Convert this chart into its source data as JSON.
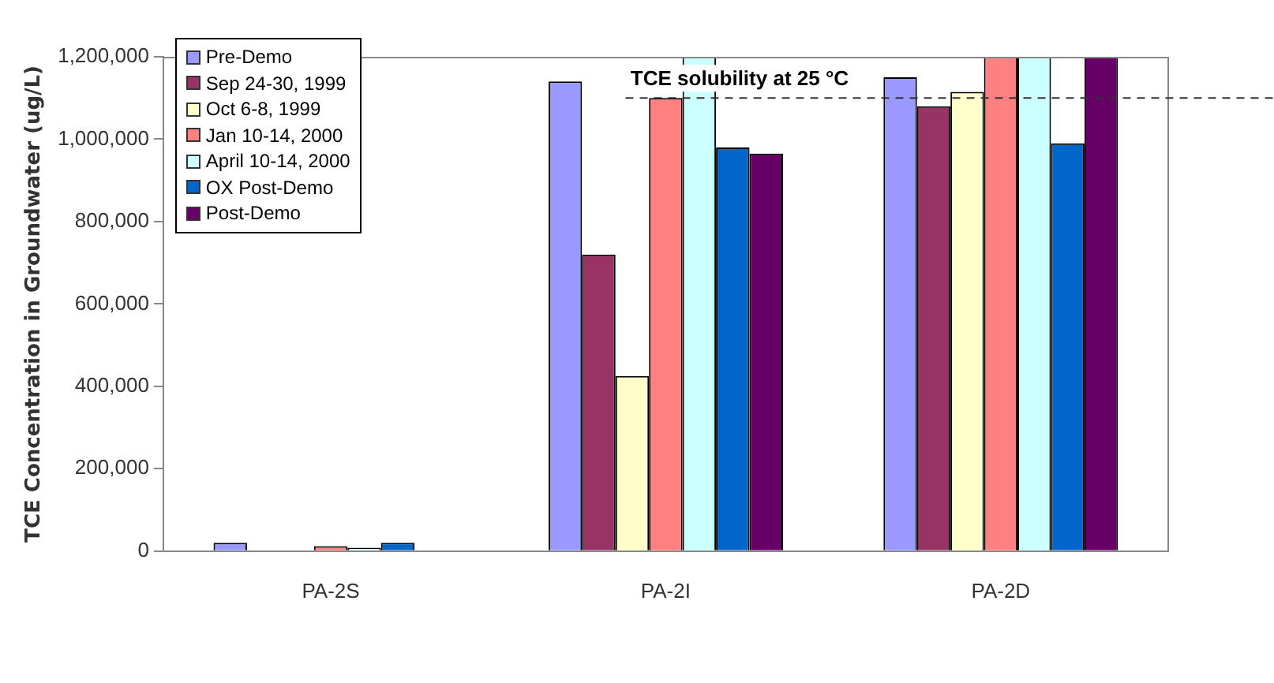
{
  "chart_data": {
    "type": "bar",
    "ylabel": "TCE Concentration in Groundwater (ug/L)",
    "categories": [
      "PA-2S",
      "PA-2I",
      "PA-2D"
    ],
    "series": [
      {
        "name": "Pre-Demo",
        "color": "#9999ff",
        "values": [
          20000,
          1140000,
          1150000
        ]
      },
      {
        "name": "Sep 24-30, 1999",
        "color": "#993366",
        "values": [
          null,
          720000,
          1080000
        ]
      },
      {
        "name": "Oct 6-8, 1999",
        "color": "#ffffcc",
        "values": [
          null,
          425000,
          1115000
        ]
      },
      {
        "name": "Jan 10-14, 2000",
        "color": "#ff8080",
        "values": [
          12000,
          1100000,
          1200000
        ]
      },
      {
        "name": "April 10-14, 2000",
        "color": "#ccffff",
        "values": [
          8000,
          1200000,
          1200000
        ]
      },
      {
        "name": "OX Post-Demo",
        "color": "#0066cc",
        "values": [
          20000,
          980000,
          990000
        ]
      },
      {
        "name": "Post-Demo",
        "color": "#660066",
        "values": [
          null,
          965000,
          1200000
        ]
      }
    ],
    "ylim": [
      0,
      1200000
    ],
    "yticks": [
      0,
      {
        "value": 200000,
        "label": "200,000"
      },
      {
        "value": 400000,
        "label": "400,000"
      },
      {
        "value": 600000,
        "label": "600,000"
      },
      {
        "value": 800000,
        "label": "800,000"
      },
      {
        "value": 1000000,
        "label": "1,000,000"
      },
      {
        "value": 1200000,
        "label": "1,200,000"
      }
    ],
    "ref_lines": [
      {
        "axis": "y",
        "value": 1100000,
        "label": "TCE solubility at 25 °C",
        "line_style": "dashed",
        "color": "#333333"
      }
    ],
    "grid": false,
    "legend": "top left"
  }
}
